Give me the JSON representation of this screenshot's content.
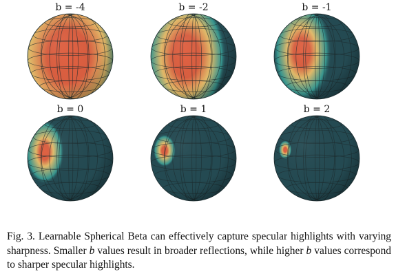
{
  "figure": {
    "panels": [
      {
        "label": "b = -4",
        "b": -4
      },
      {
        "label": "b = -2",
        "b": -2
      },
      {
        "label": "b = -1",
        "b": -1
      },
      {
        "label": "b = 0",
        "b": 0
      },
      {
        "label": "b = 1",
        "b": 1
      },
      {
        "label": "b = 2",
        "b": 2
      }
    ],
    "colors": {
      "base": "#244a52",
      "glow": "#3aa39a",
      "warm": "#ecc06a",
      "hot": "#e25f3f",
      "grid": "#1c2b2e"
    }
  },
  "caption": {
    "part1": "Fig. 3.  Learnable Spherical Beta can effectively capture specular highlights with varying sharpness. Smaller ",
    "var1": "b",
    "part2": " values result in broader reflections, while higher ",
    "var2": "b",
    "part3": " values correspond to sharper specular highlights."
  }
}
